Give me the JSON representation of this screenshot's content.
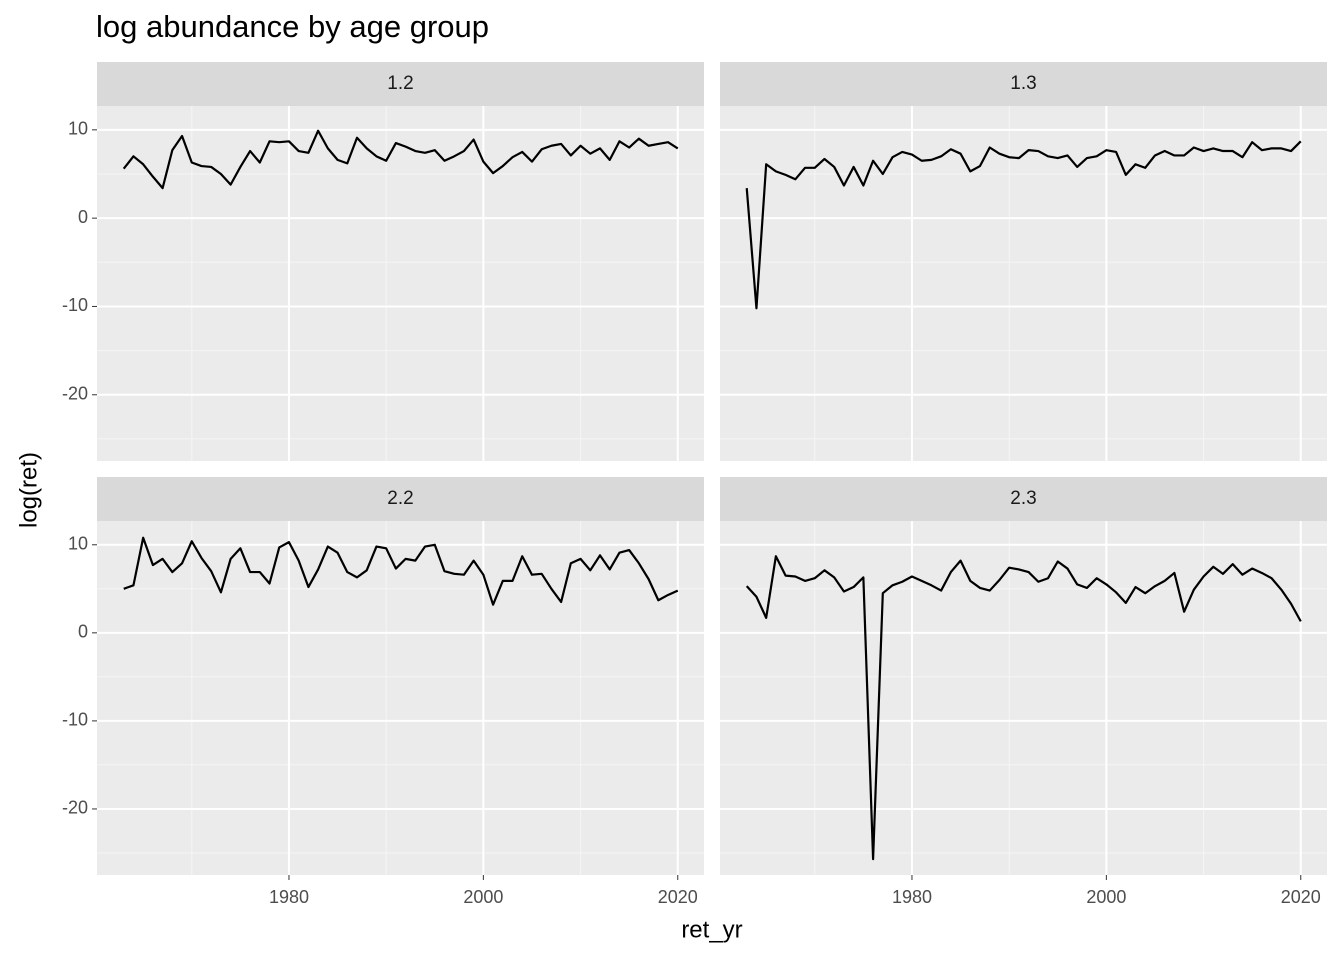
{
  "title": "log abundance by age group",
  "x_label": "ret_yr",
  "y_label": "log(ret)",
  "chart_data": [
    {
      "type": "line",
      "title": "1.2",
      "color": "#000000",
      "grid": true,
      "xlim": [
        1960.25,
        2022.7
      ],
      "ylim": [
        -27.5,
        12.7
      ],
      "xticks": [
        1980,
        2000,
        2020
      ],
      "yticks": [
        -20,
        -10,
        0,
        10
      ],
      "x": [
        1963,
        1964,
        1965,
        1966,
        1967,
        1968,
        1969,
        1970,
        1971,
        1972,
        1973,
        1974,
        1975,
        1976,
        1977,
        1978,
        1979,
        1980,
        1981,
        1982,
        1983,
        1984,
        1985,
        1986,
        1987,
        1988,
        1989,
        1990,
        1991,
        1992,
        1993,
        1994,
        1995,
        1996,
        1997,
        1998,
        1999,
        2000,
        2001,
        2002,
        2003,
        2004,
        2005,
        2006,
        2007,
        2008,
        2009,
        2010,
        2011,
        2012,
        2013,
        2014,
        2015,
        2016,
        2017,
        2018,
        2019,
        2020
      ],
      "values": [
        5.6,
        7.0,
        6.1,
        4.7,
        3.4,
        7.7,
        9.3,
        6.3,
        5.9,
        5.8,
        5.0,
        3.8,
        5.8,
        7.6,
        6.3,
        8.7,
        8.6,
        8.7,
        7.6,
        7.4,
        9.9,
        7.9,
        6.6,
        6.2,
        9.1,
        7.9,
        7.0,
        6.5,
        8.5,
        8.1,
        7.6,
        7.4,
        7.7,
        6.5,
        7.0,
        7.6,
        8.9,
        6.4,
        5.1,
        5.9,
        6.9,
        7.5,
        6.4,
        7.8,
        8.2,
        8.4,
        7.1,
        8.2,
        7.3,
        7.9,
        6.6,
        8.7,
        8.0,
        9.0,
        8.2,
        8.4,
        8.6,
        7.9
      ]
    },
    {
      "type": "line",
      "title": "1.3",
      "color": "#000000",
      "grid": true,
      "xlim": [
        1960.25,
        2022.7
      ],
      "ylim": [
        -27.5,
        12.7
      ],
      "xticks": [
        1980,
        2000,
        2020
      ],
      "yticks": [
        -20,
        -10,
        0,
        10
      ],
      "x": [
        1963,
        1964,
        1965,
        1966,
        1967,
        1968,
        1969,
        1970,
        1971,
        1972,
        1973,
        1974,
        1975,
        1976,
        1977,
        1978,
        1979,
        1980,
        1981,
        1982,
        1983,
        1984,
        1985,
        1986,
        1987,
        1988,
        1989,
        1990,
        1991,
        1992,
        1993,
        1994,
        1995,
        1996,
        1997,
        1998,
        1999,
        2000,
        2001,
        2002,
        2003,
        2004,
        2005,
        2006,
        2007,
        2008,
        2009,
        2010,
        2011,
        2012,
        2013,
        2014,
        2015,
        2016,
        2017,
        2018,
        2019,
        2020
      ],
      "values": [
        3.4,
        -10.2,
        6.1,
        5.3,
        4.9,
        4.4,
        5.7,
        5.7,
        6.7,
        5.8,
        3.7,
        5.8,
        3.7,
        6.5,
        5.0,
        6.9,
        7.5,
        7.2,
        6.5,
        6.6,
        7.0,
        7.8,
        7.3,
        5.3,
        5.9,
        8.0,
        7.3,
        6.9,
        6.8,
        7.7,
        7.6,
        7.0,
        6.8,
        7.1,
        5.8,
        6.8,
        7.0,
        7.7,
        7.5,
        4.9,
        6.1,
        5.7,
        7.1,
        7.6,
        7.1,
        7.1,
        8.0,
        7.6,
        7.9,
        7.6,
        7.6,
        6.9,
        8.6,
        7.7,
        7.9,
        7.9,
        7.6,
        8.7
      ]
    },
    {
      "type": "line",
      "title": "2.2",
      "color": "#000000",
      "grid": true,
      "xlim": [
        1960.25,
        2022.7
      ],
      "ylim": [
        -27.5,
        12.7
      ],
      "xticks": [
        1980,
        2000,
        2020
      ],
      "yticks": [
        -20,
        -10,
        0,
        10
      ],
      "x": [
        1963,
        1964,
        1965,
        1966,
        1967,
        1968,
        1969,
        1970,
        1971,
        1972,
        1973,
        1974,
        1975,
        1976,
        1977,
        1978,
        1979,
        1980,
        1981,
        1982,
        1983,
        1984,
        1985,
        1986,
        1987,
        1988,
        1989,
        1990,
        1991,
        1992,
        1993,
        1994,
        1995,
        1996,
        1997,
        1998,
        1999,
        2000,
        2001,
        2002,
        2003,
        2004,
        2005,
        2006,
        2007,
        2008,
        2009,
        2010,
        2011,
        2012,
        2013,
        2014,
        2015,
        2016,
        2017,
        2018,
        2019,
        2020
      ],
      "values": [
        5.0,
        5.4,
        10.8,
        7.7,
        8.4,
        6.9,
        7.9,
        10.4,
        8.5,
        7.0,
        4.6,
        8.4,
        9.6,
        6.9,
        6.9,
        5.6,
        9.7,
        10.3,
        8.2,
        5.2,
        7.2,
        9.8,
        9.1,
        6.9,
        6.3,
        7.1,
        9.8,
        9.6,
        7.3,
        8.4,
        8.2,
        9.8,
        10.0,
        7.0,
        6.7,
        6.6,
        8.2,
        6.6,
        3.2,
        5.9,
        5.9,
        8.7,
        6.6,
        6.7,
        5.0,
        3.5,
        7.9,
        8.4,
        7.1,
        8.8,
        7.2,
        9.1,
        9.4,
        7.9,
        6.1,
        3.7,
        4.3,
        4.8
      ]
    },
    {
      "type": "line",
      "title": "2.3",
      "color": "#000000",
      "grid": true,
      "xlim": [
        1960.25,
        2022.7
      ],
      "ylim": [
        -27.5,
        12.7
      ],
      "xticks": [
        1980,
        2000,
        2020
      ],
      "yticks": [
        -20,
        -10,
        0,
        10
      ],
      "x": [
        1963,
        1964,
        1965,
        1966,
        1967,
        1968,
        1969,
        1970,
        1971,
        1972,
        1973,
        1974,
        1975,
        1976,
        1977,
        1978,
        1979,
        1980,
        1981,
        1982,
        1983,
        1984,
        1985,
        1986,
        1987,
        1988,
        1989,
        1990,
        1991,
        1992,
        1993,
        1994,
        1995,
        1996,
        1997,
        1998,
        1999,
        2000,
        2001,
        2002,
        2003,
        2004,
        2005,
        2006,
        2007,
        2008,
        2009,
        2010,
        2011,
        2012,
        2013,
        2014,
        2015,
        2016,
        2017,
        2018,
        2019,
        2020
      ],
      "values": [
        5.3,
        4.1,
        1.7,
        8.7,
        6.5,
        6.4,
        5.9,
        6.2,
        7.1,
        6.3,
        4.7,
        5.2,
        6.3,
        -25.7,
        4.5,
        5.4,
        5.8,
        6.4,
        5.9,
        5.4,
        4.8,
        6.9,
        8.2,
        5.9,
        5.1,
        4.8,
        6.0,
        7.4,
        7.2,
        6.9,
        5.8,
        6.2,
        8.1,
        7.3,
        5.5,
        5.1,
        6.2,
        5.5,
        4.6,
        3.4,
        5.2,
        4.5,
        5.3,
        5.9,
        6.8,
        2.4,
        4.9,
        6.4,
        7.5,
        6.7,
        7.8,
        6.6,
        7.3,
        6.8,
        6.2,
        4.9,
        3.3,
        1.3
      ]
    }
  ]
}
